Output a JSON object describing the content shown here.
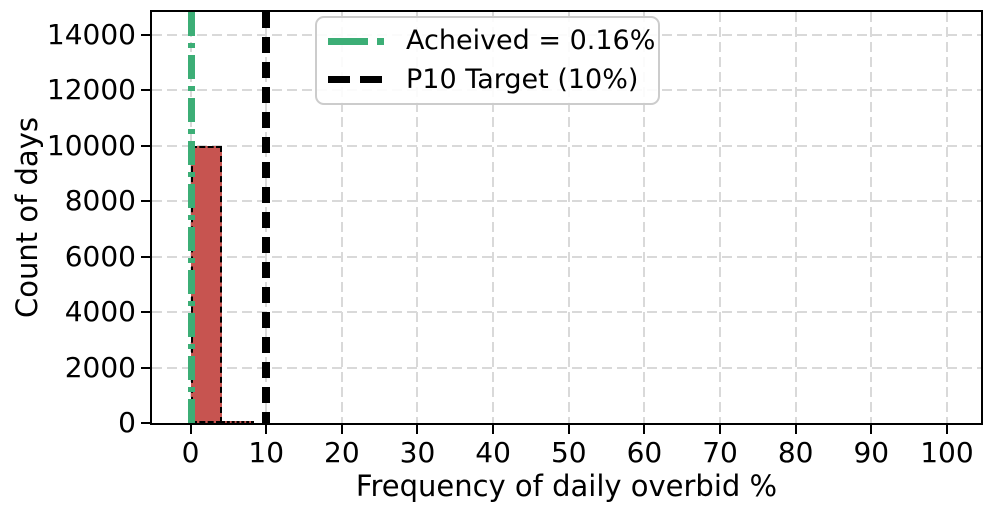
{
  "figure": {
    "background": "#ffffff"
  },
  "chart_data": {
    "type": "bar",
    "subtype": "histogram",
    "title": "",
    "xlabel": "Frequency of daily overbid %",
    "ylabel": "Count of days",
    "xlim": [
      -5.1,
      104.5
    ],
    "ylim": [
      0,
      14820
    ],
    "xticks": [
      0,
      10,
      20,
      30,
      40,
      50,
      60,
      70,
      80,
      90,
      100
    ],
    "yticks": [
      0,
      2000,
      4000,
      6000,
      8000,
      10000,
      12000,
      14000
    ],
    "grid": true,
    "grid_color": "#d9d9d9",
    "spine_color": "#000000",
    "bar_color": "#c75450",
    "bar_edge_color": "#000000",
    "bins": [
      {
        "x0": 0.0,
        "x1": 4.2,
        "count": 10000
      },
      {
        "x0": 4.2,
        "x1": 8.4,
        "count": 60
      }
    ],
    "lines": [
      {
        "name": "achieved-line",
        "x": 0.16,
        "style": "dashdot",
        "color": "#3cae76",
        "label": "Acheived = 0.16%"
      },
      {
        "name": "target-line",
        "x": 10,
        "style": "dashed",
        "color": "#000000",
        "label": "P10 Target (10%)"
      }
    ],
    "legend": {
      "position": "upper left",
      "entries": [
        {
          "label": "Acheived = 0.16%",
          "color": "#3cae76",
          "style": "dashdot"
        },
        {
          "label": "P10 Target (10%)",
          "color": "#000000",
          "style": "dashed"
        }
      ]
    }
  }
}
